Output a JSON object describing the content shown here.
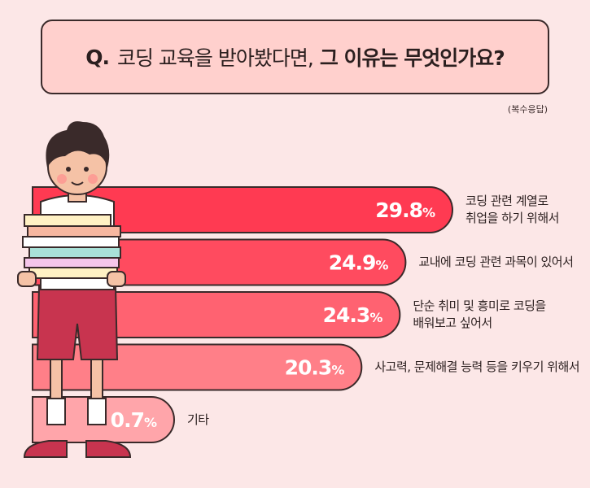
{
  "header": {
    "q_mark": "Q.",
    "question_normal": "코딩 교육을 받아봤다면,",
    "question_bold": "그 이유는 무엇인가요?",
    "note": "(복수응답)"
  },
  "colors": {
    "background": "#fce7e7",
    "question_box": "#ffd0cd",
    "outline": "#3a2a2a",
    "bars": [
      "#ff3a52",
      "#ff4b5f",
      "#ff6271",
      "#ff7f88",
      "#ffa5aa"
    ]
  },
  "chart_data": {
    "type": "bar",
    "orientation": "horizontal",
    "categories": [
      "코딩 관련 계열로\n취업을 하기 위해서",
      "교내에 코딩 관련 과목이 있어서",
      "단순 취미 및 흥미로 코딩을\n배워보고 싶어서",
      "사고력, 문제해결 능력 등을 키우기 위해서",
      "기타"
    ],
    "values": [
      29.8,
      24.9,
      24.3,
      20.3,
      0.7
    ],
    "labels": [
      "29.8%",
      "24.9%",
      "24.3%",
      "20.3%",
      "0.7%"
    ],
    "unit": "%"
  }
}
